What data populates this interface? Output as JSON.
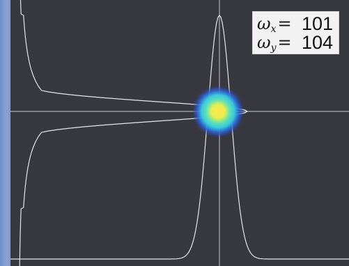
{
  "readout": {
    "wx_symbol": "ω",
    "wx_subscript": "x",
    "wx_equals": "=",
    "wx_value": "101",
    "wy_symbol": "ω",
    "wy_subscript": "y",
    "wy_equals": "=",
    "wy_value": "104"
  },
  "colors": {
    "background": "#38383f",
    "frame": "#7c98c8",
    "profile_line": "#e6e6ea",
    "crosshair": "#c8c8d2",
    "spot_core": "#f4e24a",
    "spot_mid": "#3fd6c8",
    "spot_outer": "#2a56d8"
  },
  "beam_profile": {
    "type": "line",
    "horizontal_profile_peak": 1.0,
    "vertical_profile_peak": 1.0,
    "spot_shape": "gaussian"
  }
}
